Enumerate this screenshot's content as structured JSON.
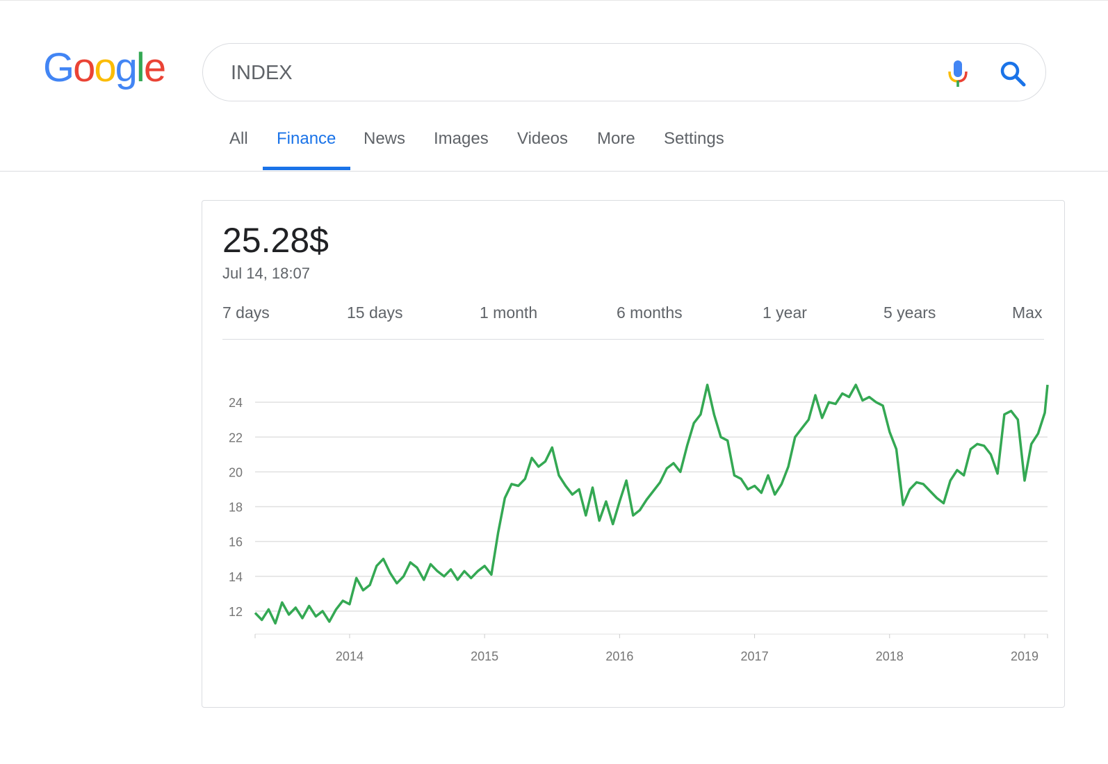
{
  "logo": {
    "letters": [
      "G",
      "o",
      "o",
      "g",
      "l",
      "e"
    ],
    "colors": [
      "#4285F4",
      "#EA4335",
      "#FBBC05",
      "#4285F4",
      "#34A853",
      "#EA4335"
    ]
  },
  "search": {
    "value": "INDEX",
    "mic_icon": "mic-icon",
    "search_icon": "search-icon"
  },
  "tabs": [
    {
      "label": "All",
      "active": false
    },
    {
      "label": "Finance",
      "active": true
    },
    {
      "label": "News",
      "active": false
    },
    {
      "label": "Images",
      "active": false
    },
    {
      "label": "Videos",
      "active": false
    },
    {
      "label": "More",
      "active": false
    },
    {
      "label": "Settings",
      "active": false
    }
  ],
  "quote": {
    "price": "25.28$",
    "timestamp": "Jul 14, 18:07"
  },
  "ranges": [
    "7 days",
    "15 days",
    "1 month",
    "6 months",
    "1 year",
    "5 years",
    "Max"
  ],
  "colors": {
    "accent": "#1a73e8",
    "line": "#34a853",
    "grid": "#e0e0e0"
  },
  "chart_data": {
    "type": "line",
    "title": "",
    "xlabel": "",
    "ylabel": "",
    "xlim": [
      2013.3,
      2019.17
    ],
    "ylim": [
      11,
      26
    ],
    "yticks": [
      12,
      14,
      16,
      18,
      20,
      22,
      24
    ],
    "xticks": [
      2014,
      2015,
      2016,
      2017,
      2018,
      2019
    ],
    "grid": true,
    "series": [
      {
        "x": [
          2013.3,
          2013.35,
          2013.4,
          2013.45,
          2013.5,
          2013.55,
          2013.6,
          2013.65,
          2013.7,
          2013.75,
          2013.8,
          2013.85,
          2013.9,
          2013.95,
          2014.0,
          2014.05,
          2014.1,
          2014.15,
          2014.2,
          2014.25,
          2014.3,
          2014.35,
          2014.4,
          2014.45,
          2014.5,
          2014.55,
          2014.6,
          2014.65,
          2014.7,
          2014.75,
          2014.8,
          2014.85,
          2014.9,
          2014.95,
          2015.0,
          2015.05,
          2015.1,
          2015.15,
          2015.2,
          2015.25,
          2015.3,
          2015.35,
          2015.4,
          2015.45,
          2015.5,
          2015.55,
          2015.6,
          2015.65,
          2015.7,
          2015.75,
          2015.8,
          2015.85,
          2015.9,
          2015.95,
          2016.0,
          2016.05,
          2016.1,
          2016.15,
          2016.2,
          2016.25,
          2016.3,
          2016.35,
          2016.4,
          2016.45,
          2016.5,
          2016.55,
          2016.6,
          2016.65,
          2016.7,
          2016.75,
          2016.8,
          2016.85,
          2016.9,
          2016.95,
          2017.0,
          2017.05,
          2017.1,
          2017.15,
          2017.2,
          2017.25,
          2017.3,
          2017.35,
          2017.4,
          2017.45,
          2017.5,
          2017.55,
          2017.6,
          2017.65,
          2017.7,
          2017.75,
          2017.8,
          2017.85,
          2017.9,
          2017.95,
          2018.0,
          2018.05,
          2018.1,
          2018.15,
          2018.2,
          2018.25,
          2018.3,
          2018.35,
          2018.4,
          2018.45,
          2018.5,
          2018.55,
          2018.6,
          2018.65,
          2018.7,
          2018.75,
          2018.8,
          2018.85,
          2018.9,
          2018.95,
          2019.0,
          2019.05,
          2019.1,
          2019.15,
          2019.17
        ],
        "values": [
          11.9,
          11.5,
          12.1,
          11.3,
          12.5,
          11.8,
          12.2,
          11.6,
          12.3,
          11.7,
          12.0,
          11.4,
          12.1,
          12.6,
          12.4,
          13.9,
          13.2,
          13.5,
          14.6,
          15.0,
          14.2,
          13.6,
          14.0,
          14.8,
          14.5,
          13.8,
          14.7,
          14.3,
          14.0,
          14.4,
          13.8,
          14.3,
          13.9,
          14.3,
          14.6,
          14.1,
          16.5,
          18.5,
          19.3,
          19.2,
          19.6,
          20.8,
          20.3,
          20.6,
          21.4,
          19.8,
          19.2,
          18.7,
          19.0,
          17.5,
          19.1,
          17.2,
          18.3,
          17.0,
          18.3,
          19.5,
          17.5,
          17.8,
          18.4,
          18.9,
          19.4,
          20.2,
          20.5,
          20.0,
          21.5,
          22.8,
          23.3,
          25.0,
          23.3,
          22.0,
          21.8,
          19.8,
          19.6,
          19.0,
          19.2,
          18.8,
          19.8,
          18.7,
          19.3,
          20.3,
          22.0,
          22.5,
          23.0,
          24.4,
          23.1,
          24.0,
          23.9,
          24.5,
          24.3,
          25.0,
          24.1,
          24.3,
          24.0,
          23.8,
          22.3,
          21.3,
          18.1,
          19.0,
          19.4,
          19.3,
          18.9,
          18.5,
          18.2,
          19.5,
          20.1,
          19.8,
          21.3,
          21.6,
          21.5,
          21.0,
          19.9,
          23.3,
          23.5,
          23.0,
          19.5,
          21.6,
          22.2,
          23.4,
          25.0
        ]
      }
    ]
  }
}
